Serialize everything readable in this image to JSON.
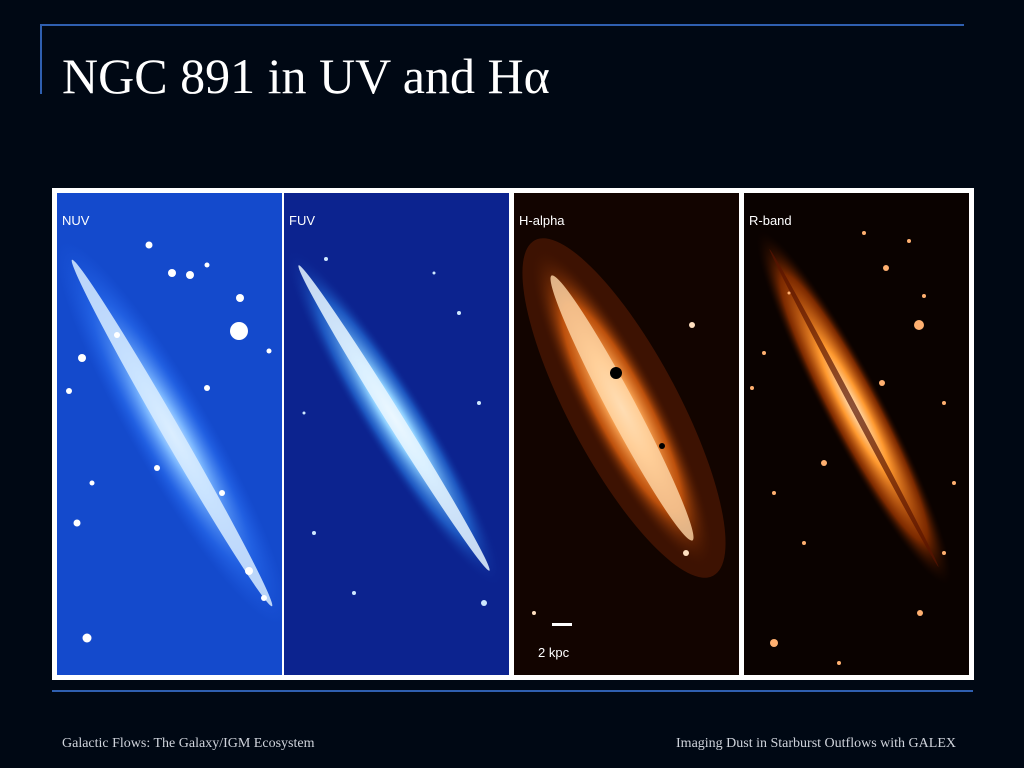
{
  "slide": {
    "title": "NGC 891 in UV and Hα",
    "footer_left": "Galactic Flows: The Galaxy/IGM Ecosystem",
    "footer_right": "Imaging Dust in Starburst Outflows with GALEX"
  },
  "figure": {
    "panels": [
      {
        "label": "NUV",
        "color": "#1e5ce6"
      },
      {
        "label": "FUV",
        "color": "#0a1e8c"
      },
      {
        "label": "H-alpha",
        "color": "#ff7a10"
      },
      {
        "label": "R-band",
        "color": "#ff6a00"
      }
    ],
    "scale_label": "2 kpc"
  }
}
